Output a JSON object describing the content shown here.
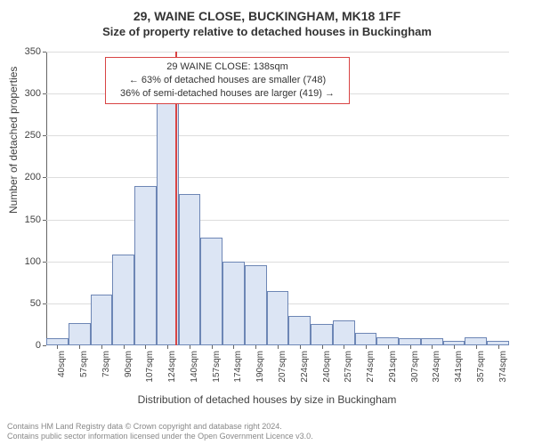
{
  "title": "29, WAINE CLOSE, BUCKINGHAM, MK18 1FF",
  "subtitle": "Size of property relative to detached houses in Buckingham",
  "y_axis_title": "Number of detached properties",
  "x_axis_title": "Distribution of detached houses by size in Buckingham",
  "chart": {
    "type": "histogram",
    "background_color": "#ffffff",
    "grid_color": "#dddddd",
    "axis_color": "#666666",
    "bar_fill": "#dce5f4",
    "bar_border": "#6d86b5",
    "ref_line_color": "#d84444",
    "title_fontsize": 14,
    "subtitle_fontsize": 13,
    "axis_title_fontsize": 12,
    "tick_fontsize": 11,
    "xtick_fontsize": 10,
    "bar_width_ratio": 1.0,
    "ylim": [
      0,
      350
    ],
    "ytick_step": 50,
    "yticks": [
      0,
      50,
      100,
      150,
      200,
      250,
      300,
      350
    ],
    "ref_x": 138,
    "categories": [
      "40sqm",
      "57sqm",
      "73sqm",
      "90sqm",
      "107sqm",
      "124sqm",
      "140sqm",
      "157sqm",
      "174sqm",
      "190sqm",
      "207sqm",
      "224sqm",
      "240sqm",
      "257sqm",
      "274sqm",
      "291sqm",
      "307sqm",
      "324sqm",
      "341sqm",
      "357sqm",
      "374sqm"
    ],
    "values": [
      8,
      27,
      60,
      108,
      190,
      288,
      180,
      128,
      100,
      95,
      65,
      35,
      25,
      30,
      15,
      10,
      8,
      8,
      5,
      10,
      5
    ]
  },
  "annotation": {
    "line1": "29 WAINE CLOSE: 138sqm",
    "line2": "← 63% of detached houses are smaller (748)",
    "line3": "36% of semi-detached houses are larger (419) →",
    "border_color": "#d84444",
    "fontsize": 11
  },
  "footer": {
    "line1": "Contains HM Land Registry data © Crown copyright and database right 2024.",
    "line2": "Contains public sector information licensed under the Open Government Licence v3.0.",
    "color": "#888888",
    "fontsize": 9
  }
}
